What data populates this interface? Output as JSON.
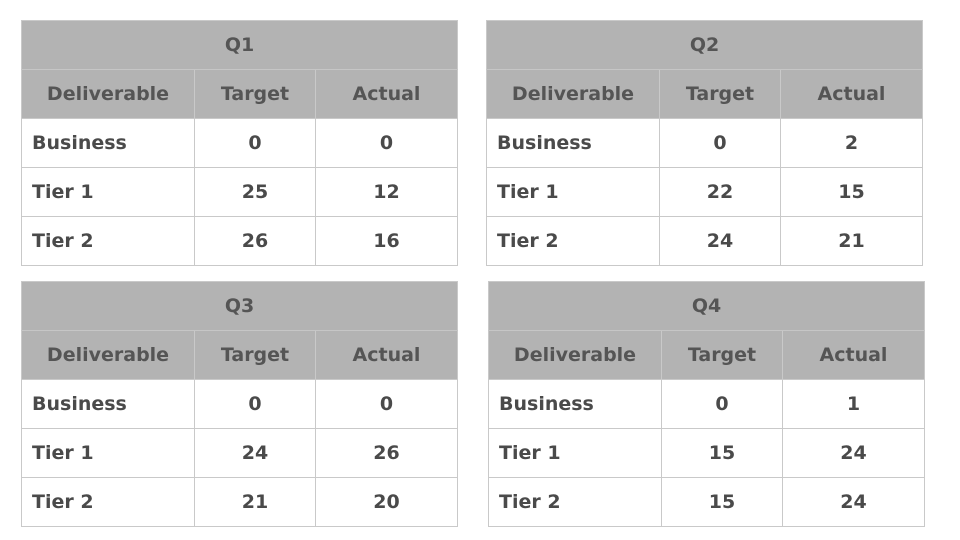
{
  "quarters": [
    {
      "title": "Q1",
      "headers": [
        "Deliverable",
        "Target",
        "Actual"
      ],
      "rows": [
        {
          "label": "Business",
          "target": "0",
          "actual": "0"
        },
        {
          "label": "Tier 1",
          "target": "25",
          "actual": "12"
        },
        {
          "label": "Tier 2",
          "target": "26",
          "actual": "16"
        }
      ]
    },
    {
      "title": "Q2",
      "headers": [
        "Deliverable",
        "Target",
        "Actual"
      ],
      "rows": [
        {
          "label": "Business",
          "target": "0",
          "actual": "2"
        },
        {
          "label": "Tier 1",
          "target": "22",
          "actual": "15"
        },
        {
          "label": "Tier 2",
          "target": "24",
          "actual": "21"
        }
      ]
    },
    {
      "title": "Q3",
      "headers": [
        "Deliverable",
        "Target",
        "Actual"
      ],
      "rows": [
        {
          "label": "Business",
          "target": "0",
          "actual": "0"
        },
        {
          "label": "Tier 1",
          "target": "24",
          "actual": "26"
        },
        {
          "label": "Tier 2",
          "target": "21",
          "actual": "20"
        }
      ]
    },
    {
      "title": "Q4",
      "headers": [
        "Deliverable",
        "Target",
        "Actual"
      ],
      "rows": [
        {
          "label": "Business",
          "target": "0",
          "actual": "1"
        },
        {
          "label": "Tier 1",
          "target": "15",
          "actual": "24"
        },
        {
          "label": "Tier 2",
          "target": "15",
          "actual": "24"
        }
      ]
    }
  ]
}
